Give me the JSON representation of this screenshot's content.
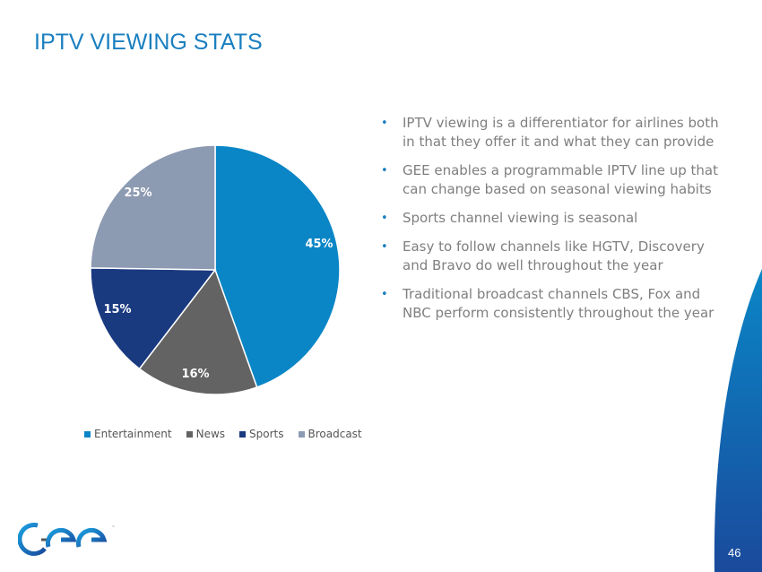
{
  "slide": {
    "title": "IPTV VIEWING STATS",
    "page_number": "46",
    "logo_text": "GEE"
  },
  "bullets": [
    "IPTV viewing is a differentiator for airlines both in that they offer it and what they can provide",
    "GEE enables a programmable  IPTV line up that can change based on seasonal viewing habits",
    "Sports channel viewing is seasonal",
    "Easy to follow channels like HGTV, Discovery  and Bravo do well throughout the year",
    "Traditional broadcast channels CBS, Fox and NBC perform  consistently throughout the year"
  ],
  "colors": {
    "accent": "#1a7fc0",
    "swoosh": "#1565b8"
  },
  "chart_data": {
    "type": "pie",
    "title": "",
    "categories": [
      "Entertainment",
      "News",
      "Sports",
      "Broadcast"
    ],
    "values": [
      45,
      16,
      15,
      25
    ],
    "labels": [
      "45%",
      "16%",
      "15%",
      "25%"
    ],
    "colors": [
      "#0a86c6",
      "#636363",
      "#1a3a80",
      "#8c9ab2"
    ],
    "legend_position": "bottom"
  }
}
